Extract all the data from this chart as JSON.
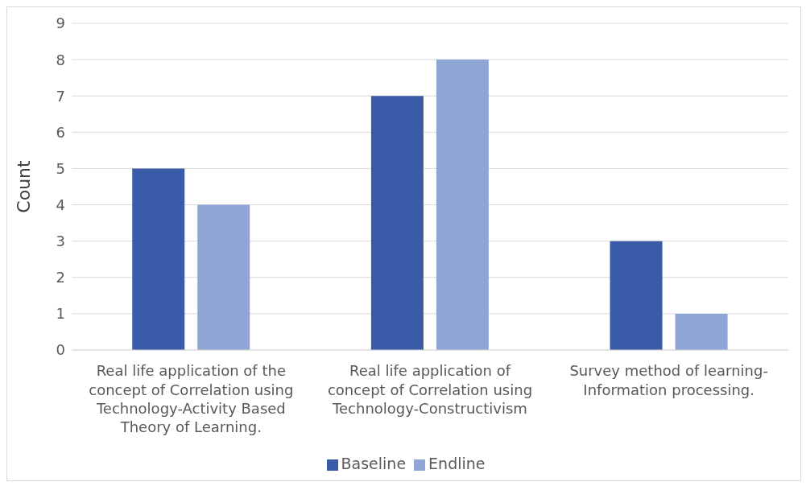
{
  "chart_data": {
    "type": "bar",
    "ylabel": "Count",
    "categories": [
      "Real life application of the concept of Correlation using Technology-Activity Based Theory of Learning.",
      "Real life application of concept of Correlation using Technology-Constructivism",
      "Survey method of learning-Information processing."
    ],
    "series": [
      {
        "name": "Baseline",
        "color": "#3a5ca8",
        "values": [
          5,
          7,
          3
        ]
      },
      {
        "name": "Endline",
        "color": "#8fa5d6",
        "values": [
          4,
          8,
          1
        ]
      }
    ],
    "ylim": [
      0,
      9
    ],
    "yticks": [
      0,
      1,
      2,
      3,
      4,
      5,
      6,
      7,
      8,
      9
    ],
    "grid": "y",
    "legend": "bottom"
  }
}
